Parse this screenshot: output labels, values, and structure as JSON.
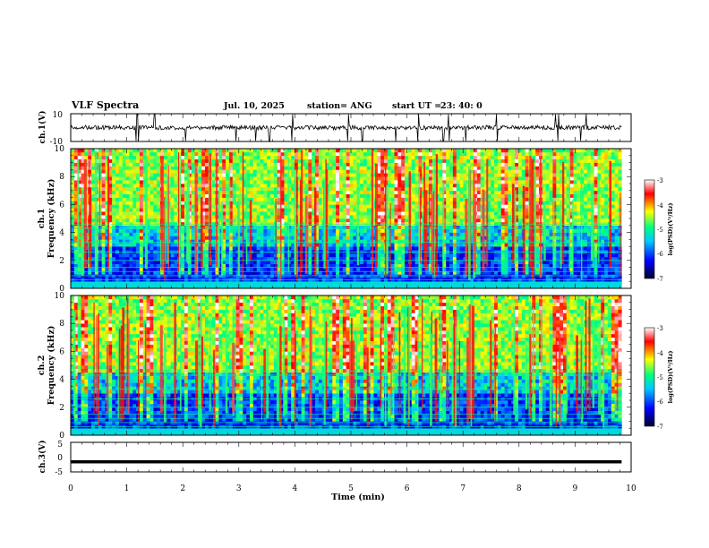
{
  "header": {
    "title": "VLF Spectra",
    "date": "Jul. 10, 2025",
    "station": "station= ANG",
    "start_label": "start UT =",
    "start_time": "23: 40: 0"
  },
  "axes": {
    "ch1_waveform_label": "ch.1(V)",
    "ch1_spec_label": "ch.1",
    "ch2_spec_label": "ch.2",
    "freq_label": "Frequency (kHz)",
    "ch3_label": "ch.3(V)",
    "time_label": "Time (min)",
    "ch1_ticks": [
      "10",
      "-10"
    ],
    "freq_ticks": [
      "0",
      "2",
      "4",
      "6",
      "8",
      "10"
    ],
    "ch3_ticks": [
      "5",
      "0",
      "-5"
    ],
    "time_ticks": [
      "0",
      "1",
      "2",
      "3",
      "4",
      "5",
      "6",
      "7",
      "8",
      "9",
      "10"
    ]
  },
  "colorbar": {
    "label": "log(PSD)(V²/Hz)",
    "ticks": [
      "-3",
      "-4",
      "-5",
      "-6",
      "-7"
    ],
    "range": [
      -7,
      -3
    ],
    "colors": [
      "#00002a",
      "#0000ff",
      "#00c8ff",
      "#00ff80",
      "#ffff00",
      "#ff0000",
      "#ffffff"
    ]
  },
  "chart_data": [
    {
      "type": "line",
      "name": "ch.1 waveform",
      "xlabel": "Time (min)",
      "ylabel": "ch.1(V)",
      "xlim": [
        0,
        10
      ],
      "ylim": [
        -10,
        10
      ],
      "baseline": 0,
      "spikes_x": [
        1.17,
        1.2,
        1.5,
        2.05,
        2.95,
        3.3,
        3.55,
        3.95,
        4.95,
        5.2,
        5.8,
        6.2,
        6.65,
        6.75,
        7.05,
        7.6,
        8.65,
        8.7,
        9.1,
        9.2
      ]
    },
    {
      "type": "heatmap",
      "name": "ch.1",
      "xlabel": "Time (min)",
      "ylabel": "Frequency (kHz)",
      "xlim": [
        0,
        10
      ],
      "ylim": [
        0,
        10
      ],
      "zlabel": "log(PSD)(V²/Hz)",
      "zlim": [
        -7,
        -3
      ],
      "data_extent_x": [
        0,
        9.83
      ]
    },
    {
      "type": "heatmap",
      "name": "ch.2",
      "xlabel": "Time (min)",
      "ylabel": "Frequency (kHz)",
      "xlim": [
        0,
        10
      ],
      "ylim": [
        0,
        10
      ],
      "zlabel": "log(PSD)(V²/Hz)",
      "zlim": [
        -7,
        -3
      ],
      "data_extent_x": [
        0,
        9.83
      ]
    },
    {
      "type": "line",
      "name": "ch.3",
      "xlabel": "Time (min)",
      "ylabel": "ch.3(V)",
      "xlim": [
        0,
        10
      ],
      "ylim": [
        -5,
        5
      ],
      "x": [
        0,
        9.83
      ],
      "y": [
        -1.6,
        -1.6
      ]
    }
  ]
}
